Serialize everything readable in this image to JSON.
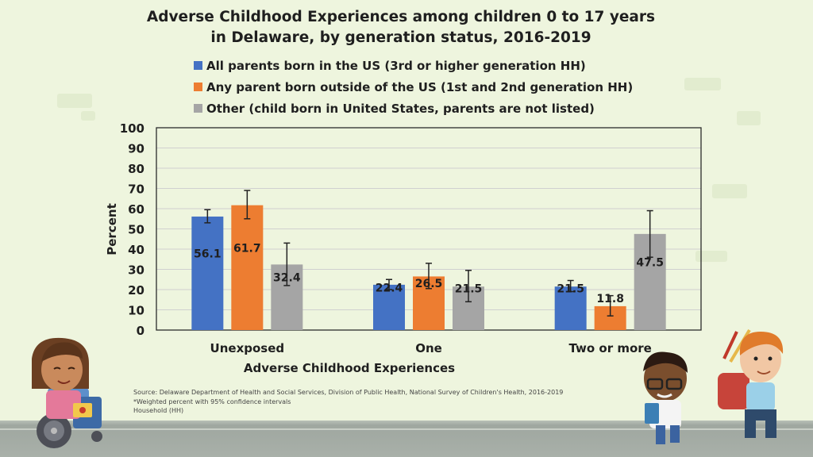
{
  "title_line1": "Adverse Childhood Experiences among children 0 to 17 years",
  "title_line2": "in Delaware, by generation status, 2016-2019",
  "source": {
    "line1": "Source: Delaware Department of Health and Social Services, Division of Public Health, National Survey of Children's Health, 2016-2019",
    "line2": "*Weighted percent with 95% confidence intervals",
    "line3": "Household (HH)"
  },
  "colors": {
    "background": "#eef5de",
    "grid": "#d0d0d0"
  },
  "chart_data": {
    "type": "bar",
    "xlabel": "Adverse Childhood Experiences",
    "ylabel": "Percent",
    "ylim": [
      0,
      100
    ],
    "yticks": [
      0,
      10,
      20,
      30,
      40,
      50,
      60,
      70,
      80,
      90,
      100
    ],
    "grid": true,
    "legend_position": "top",
    "categories": [
      "Unexposed",
      "One",
      "Two or more"
    ],
    "series": [
      {
        "name": "All parents born in the US (3rd or higher generation HH)",
        "color": "#4472c4",
        "values": [
          56.1,
          22.4,
          21.5
        ],
        "ci_low": [
          53,
          20,
          19
        ],
        "ci_high": [
          59.5,
          25,
          24.5
        ]
      },
      {
        "name": "Any parent born outside of the US (1st and 2nd generation HH)",
        "color": "#ed7d31",
        "values": [
          61.7,
          26.5,
          11.8
        ],
        "ci_low": [
          55,
          20.5,
          7
        ],
        "ci_high": [
          69,
          33,
          17
        ]
      },
      {
        "name": "Other (child born in United States, parents are not listed)",
        "color": "#a5a5a5",
        "values": [
          32.4,
          21.5,
          47.5
        ],
        "ci_low": [
          22,
          14,
          36
        ],
        "ci_high": [
          43,
          29.5,
          59
        ]
      }
    ]
  }
}
